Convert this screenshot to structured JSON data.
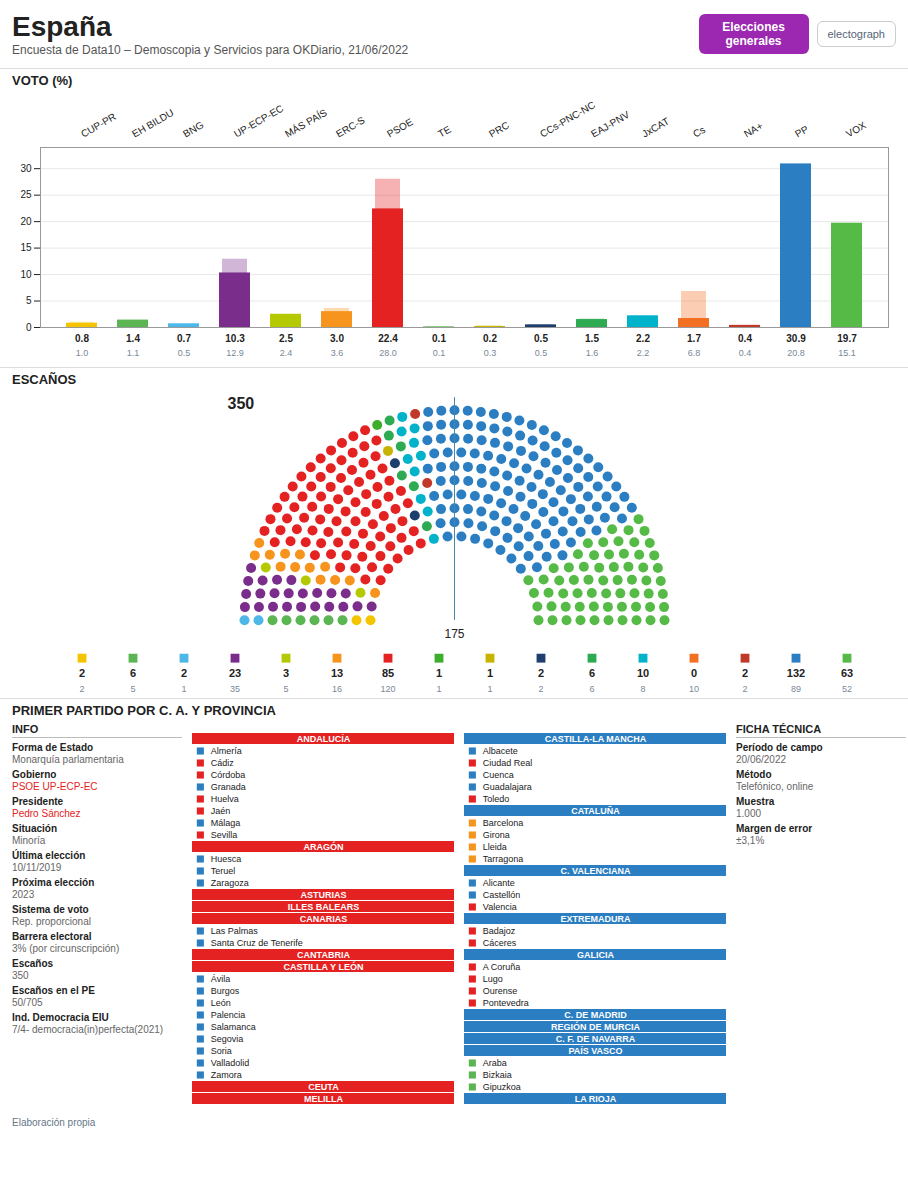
{
  "title": "España",
  "subtitle": "Encuesta de Data10 – Demoscopia y Servicios para OKDiario, 21/06/2022",
  "annotations": [
    {
      "text": "Elecciones generales",
      "color": "#9c27b0"
    },
    {
      "text": "electograph"
    },
    {
      "title": "INFO",
      "items": [
        {
          "label": "Forma de Estado",
          "value": "Monarquía parlamentaria"
        },
        {
          "label": "Gobierno",
          "value": "PSOE UP-ECP-EC",
          "color": "#e52222"
        },
        {
          "label": "Presidente",
          "value": "Pedro Sánchez",
          "color": "#e52222"
        },
        {
          "label": "Situación",
          "value": "Minoría"
        },
        {
          "label": "Última elección",
          "value": "10/11/2019"
        },
        {
          "label": "Próxima elección",
          "value": "2023"
        },
        {
          "label": "Sistema de voto",
          "value": "Rep. proporcional"
        },
        {
          "label": "Barrera electoral",
          "value": "3% (por circunscripción)"
        },
        {
          "label": "Escaños",
          "value": "350"
        },
        {
          "label": "Escaños en el PE",
          "value": "50/705"
        },
        {
          "label": "Ind. Democracia EIU",
          "value": "7/4- democracia(in)perfecta(2021)"
        }
      ]
    },
    {
      "title": "FICHA TÉCNICA",
      "items": [
        {
          "label": "Período de campo",
          "value": "20/06/2022"
        },
        {
          "label": "Método",
          "value": "Telefónico, online"
        },
        {
          "label": "Muestra",
          "value": "1.000"
        },
        {
          "label": "Margen de error",
          "value": "±3,1%"
        }
      ]
    }
  ],
  "chart_data": [
    {
      "type": "bar",
      "title": "VOTO (%)",
      "categories": [
        "CUP-PR",
        "EH BILDU",
        "BNG",
        "UP-ECP-EC",
        "MÁS PAÍS",
        "ERC-S",
        "PSOE",
        "TE",
        "PRC",
        "CCs-PNC-NC",
        "EAJ-PNV",
        "JxCAT",
        "Cs",
        "NA+",
        "PP",
        "VOX"
      ],
      "colors": [
        "#f5c400",
        "#5ab552",
        "#4db8e8",
        "#7b2d8b",
        "#b5c900",
        "#f7941d",
        "#e52222",
        "#3dae2b",
        "#c8b400",
        "#1e3f6e",
        "#2eaa52",
        "#00b2ca",
        "#f36f21",
        "#c0392b",
        "#2b7ec1",
        "#56ba47"
      ],
      "values": [
        0.8,
        1.4,
        0.7,
        10.3,
        2.5,
        3.0,
        22.4,
        0.1,
        0.2,
        0.5,
        1.5,
        2.2,
        1.7,
        0.4,
        30.9,
        19.7
      ],
      "value_labels": [
        "0.8",
        "1.4",
        "0.7",
        "10.3",
        "2.5",
        "3.0",
        "22.4",
        "0.1",
        "0.2",
        "0.5",
        "1.5",
        "2.2",
        "1.7",
        "0.4",
        "30.9",
        "19.7"
      ],
      "previous_values": [
        1.0,
        1.1,
        0.5,
        12.9,
        2.4,
        3.6,
        28.0,
        0.1,
        0.3,
        0.5,
        1.6,
        2.2,
        6.8,
        0.4,
        20.8,
        15.1
      ],
      "previous_value_labels": [
        "1.0",
        "1.1",
        "0.5",
        "12.9",
        "2.4",
        "3.6",
        "28.0",
        "0.1",
        "0.3",
        "0.5",
        "1.6",
        "2.2",
        "6.8",
        "0.4",
        "20.8",
        "15.1"
      ],
      "ylim": [
        0,
        34
      ],
      "yticks": [
        0,
        5,
        10,
        15,
        20,
        25,
        30
      ],
      "grid": true,
      "data_labels": true
    },
    {
      "type": "hemicycle",
      "title": "ESCAÑOS",
      "categories": [
        "CUP-PR",
        "EH BILDU",
        "BNG",
        "UP-ECP-EC",
        "MÁS PAÍS",
        "ERC-S",
        "PSOE",
        "TE",
        "PRC",
        "CCs-PNC-NC",
        "EAJ-PNV",
        "JxCAT",
        "Cs",
        "NA+",
        "PP",
        "VOX"
      ],
      "colors": [
        "#f5c400",
        "#5ab552",
        "#4db8e8",
        "#7b2d8b",
        "#b5c900",
        "#f7941d",
        "#e52222",
        "#3dae2b",
        "#c8b400",
        "#1e3f6e",
        "#2eaa52",
        "#00b2ca",
        "#f36f21",
        "#c0392b",
        "#2b7ec1",
        "#56ba47"
      ],
      "values": [
        2,
        6,
        2,
        23,
        3,
        13,
        85,
        1,
        1,
        2,
        6,
        10,
        0,
        2,
        132,
        63
      ],
      "previous_values": [
        2,
        5,
        1,
        35,
        5,
        16,
        120,
        1,
        1,
        2,
        6,
        8,
        10,
        2,
        89,
        52
      ],
      "total": 350,
      "majority": 175,
      "data_labels": true
    },
    {
      "type": "list",
      "title": "PRIMER PARTIDO POR C. A. Y PROVINCIA",
      "columns": [
        {
          "color": "#e52222",
          "items": [
            [
              "ANDALUCÍA",
              null
            ],
            [
              "Almería",
              "#2b7ec1"
            ],
            [
              "Cádiz",
              "#e52222"
            ],
            [
              "Córdoba",
              "#e52222"
            ],
            [
              "Granada",
              "#2b7ec1"
            ],
            [
              "Huelva",
              "#e52222"
            ],
            [
              "Jaén",
              "#e52222"
            ],
            [
              "Málaga",
              "#2b7ec1"
            ],
            [
              "Sevilla",
              "#e52222"
            ],
            [
              "ARAGÓN",
              null
            ],
            [
              "Huesca",
              "#2b7ec1"
            ],
            [
              "Teruel",
              "#2b7ec1"
            ],
            [
              "Zaragoza",
              "#2b7ec1"
            ],
            [
              "ASTURIAS",
              null
            ],
            [
              "ILLES BALEARS",
              null
            ],
            [
              "CANARIAS",
              null
            ],
            [
              "Las Palmas",
              "#2b7ec1"
            ],
            [
              "Santa Cruz de Tenerife",
              "#2b7ec1"
            ],
            [
              "CANTABRIA",
              null
            ],
            [
              "CASTILLA Y LEÓN",
              null
            ],
            [
              "Ávila",
              "#2b7ec1"
            ],
            [
              "Burgos",
              "#2b7ec1"
            ],
            [
              "León",
              "#2b7ec1"
            ],
            [
              "Palencia",
              "#2b7ec1"
            ],
            [
              "Salamanca",
              "#2b7ec1"
            ],
            [
              "Segovia",
              "#2b7ec1"
            ],
            [
              "Soria",
              "#2b7ec1"
            ],
            [
              "Valladolid",
              "#2b7ec1"
            ],
            [
              "Zamora",
              "#2b7ec1"
            ],
            [
              "CEUTA",
              null
            ],
            [
              "MELILLA",
              null
            ]
          ]
        },
        {
          "color": "#2b7ec1",
          "items": [
            [
              "CASTILLA-LA MANCHA",
              null
            ],
            [
              "Albacete",
              "#2b7ec1"
            ],
            [
              "Ciudad Real",
              "#e52222"
            ],
            [
              "Cuenca",
              "#2b7ec1"
            ],
            [
              "Guadalajara",
              "#2b7ec1"
            ],
            [
              "Toledo",
              "#e52222"
            ],
            [
              "CATALUÑA",
              null
            ],
            [
              "Barcelona",
              "#f7941d"
            ],
            [
              "Girona",
              "#f7941d"
            ],
            [
              "Lleida",
              "#f7941d"
            ],
            [
              "Tarragona",
              "#f7941d"
            ],
            [
              "C. VALENCIANA",
              null
            ],
            [
              "Alicante",
              "#2b7ec1"
            ],
            [
              "Castellón",
              "#2b7ec1"
            ],
            [
              "Valencia",
              "#e52222"
            ],
            [
              "EXTREMADURA",
              null
            ],
            [
              "Badajoz",
              "#e52222"
            ],
            [
              "Cáceres",
              "#e52222"
            ],
            [
              "GALICIA",
              null
            ],
            [
              "A Coruña",
              "#e52222"
            ],
            [
              "Lugo",
              "#e52222"
            ],
            [
              "Ourense",
              "#e52222"
            ],
            [
              "Pontevedra",
              "#e52222"
            ],
            [
              "C. DE MADRID",
              null
            ],
            [
              "REGIÓN DE MURCIA",
              null
            ],
            [
              "C. F. DE NAVARRA",
              null
            ],
            [
              "PAÍS VASCO",
              null
            ],
            [
              "Araba",
              "#5ab552"
            ],
            [
              "Bizkaia",
              "#5ab552"
            ],
            [
              "Gipuzkoa",
              "#5ab552"
            ],
            [
              "LA RIOJA",
              null
            ]
          ]
        }
      ],
      "annotations": [
        "Elaboración propia"
      ]
    }
  ]
}
